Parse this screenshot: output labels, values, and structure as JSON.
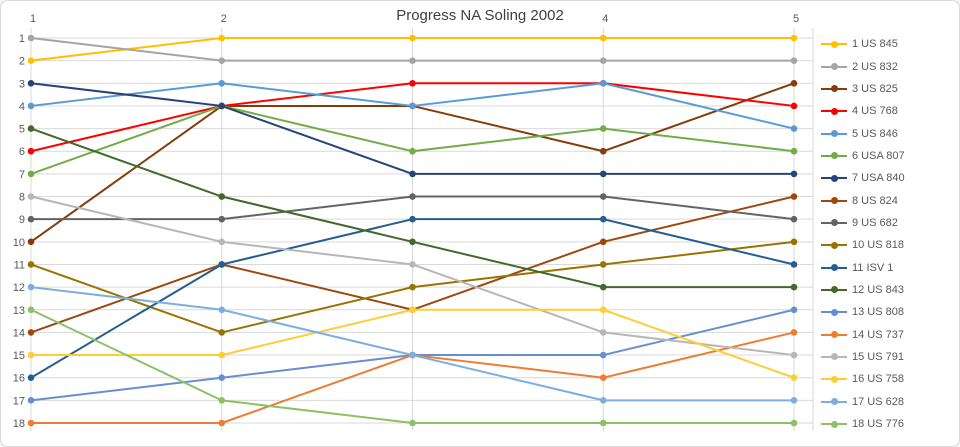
{
  "window": {
    "background": "#ffffff",
    "border_color": "#d9d9d9"
  },
  "chart_data": {
    "type": "line",
    "variant": "bump-rank-progress",
    "title": "Progress NA Soling 2002",
    "x": [
      1,
      2,
      3,
      4,
      5
    ],
    "x_labels_shown": [
      "1",
      "2",
      "",
      "4",
      "5"
    ],
    "y_axis": {
      "min": 1,
      "max": 18,
      "inverted": true,
      "tick_labels": [
        "1",
        "2",
        "3",
        "4",
        "5",
        "6",
        "7",
        "8",
        "9",
        "10",
        "11",
        "12",
        "13",
        "14",
        "15",
        "16",
        "17",
        "18"
      ]
    },
    "grid": true,
    "legend_position": "right",
    "colors": {
      "gridline": "#d9d9d9",
      "axis_text": "#595959",
      "title_text": "#3f3f3f",
      "legend_text": "#595959"
    },
    "series": [
      {
        "name": "1 US 845",
        "color": "#FFC000",
        "values": [
          2,
          1,
          1,
          1,
          1
        ]
      },
      {
        "name": "2 US 832",
        "color": "#A5A5A5",
        "values": [
          1,
          2,
          2,
          2,
          2
        ]
      },
      {
        "name": "3 US 825",
        "color": "#843C0C",
        "values": [
          10,
          4,
          4,
          6,
          3
        ]
      },
      {
        "name": "4 US 768",
        "color": "#FF0000",
        "values": [
          6,
          4,
          3,
          3,
          4
        ]
      },
      {
        "name": "5 US 846",
        "color": "#5B9BD5",
        "values": [
          4,
          3,
          4,
          3,
          5
        ]
      },
      {
        "name": "6 USA 807",
        "color": "#70AD47",
        "values": [
          7,
          4,
          6,
          5,
          6
        ]
      },
      {
        "name": "7 USA 840",
        "color": "#264478",
        "values": [
          3,
          4,
          7,
          7,
          7
        ]
      },
      {
        "name": "8 US 824",
        "color": "#9E480E",
        "values": [
          14,
          11,
          13,
          10,
          8
        ]
      },
      {
        "name": "9 US 682",
        "color": "#636363",
        "values": [
          9,
          9,
          8,
          8,
          9
        ]
      },
      {
        "name": "10 US 818",
        "color": "#997300",
        "values": [
          11,
          14,
          12,
          11,
          10
        ]
      },
      {
        "name": "11 ISV 1",
        "color": "#255E91",
        "values": [
          16,
          11,
          9,
          9,
          11
        ]
      },
      {
        "name": "12 US 843",
        "color": "#43682B",
        "values": [
          5,
          8,
          10,
          12,
          12
        ]
      },
      {
        "name": "13 US 808",
        "color": "#698ED0",
        "values": [
          17,
          16,
          15,
          15,
          13
        ]
      },
      {
        "name": "14 US 737",
        "color": "#ED7D31",
        "values": [
          18,
          18,
          15,
          16,
          14
        ]
      },
      {
        "name": "15 US 791",
        "color": "#B7B7B7",
        "values": [
          8,
          10,
          11,
          14,
          15
        ]
      },
      {
        "name": "16 US 758",
        "color": "#FFCD33",
        "values": [
          15,
          15,
          13,
          13,
          16
        ]
      },
      {
        "name": "17 US 628",
        "color": "#7CAFDD",
        "values": [
          12,
          13,
          15,
          17,
          17
        ]
      },
      {
        "name": "18 US 776",
        "color": "#8CC168",
        "values": [
          13,
          17,
          18,
          18,
          18
        ]
      }
    ]
  }
}
